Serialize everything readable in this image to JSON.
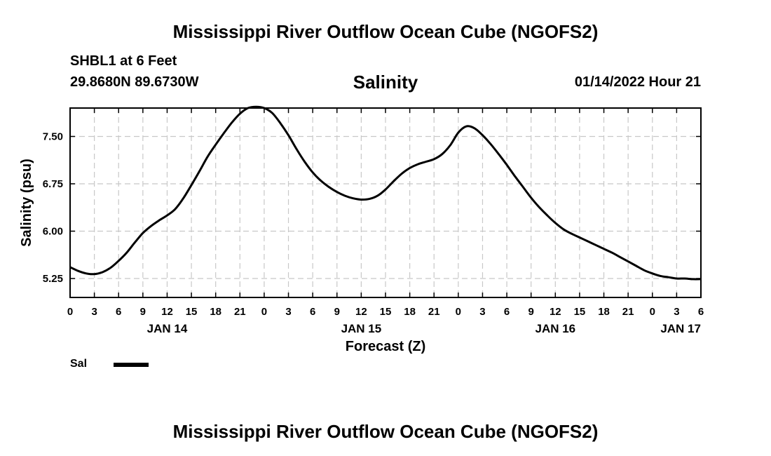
{
  "header": {
    "title_top": "Mississippi River Outflow Ocean Cube (NGOFS2)",
    "station": "SHBL1 at 6 Feet",
    "coords": "29.8680N  89.6730W",
    "variable": "Salinity",
    "timestamp": "01/14/2022 Hour 21",
    "title_bottom": "Mississippi River Outflow Ocean Cube (NGOFS2)"
  },
  "legend": {
    "label": "Sal",
    "color": "#000000"
  },
  "chart_data": {
    "type": "line",
    "title": "Salinity",
    "xlabel": "Forecast (Z)",
    "ylabel": "Salinity (psu)",
    "xlim": [
      0,
      78
    ],
    "ylim": [
      4.95,
      7.95
    ],
    "grid": true,
    "x_tick_values": [
      0,
      3,
      6,
      9,
      12,
      15,
      18,
      21,
      24,
      27,
      30,
      33,
      36,
      39,
      42,
      45,
      48,
      51,
      54,
      57,
      60,
      63,
      66,
      69,
      72,
      75,
      78
    ],
    "x_tick_labels": [
      "0",
      "3",
      "6",
      "9",
      "12",
      "15",
      "18",
      "21",
      "0",
      "3",
      "6",
      "9",
      "12",
      "15",
      "18",
      "21",
      "0",
      "3",
      "6",
      "9",
      "12",
      "15",
      "18",
      "21",
      "0",
      "3",
      "6"
    ],
    "date_labels": [
      {
        "x": 12,
        "label": "JAN 14"
      },
      {
        "x": 36,
        "label": "JAN 15"
      },
      {
        "x": 60,
        "label": "JAN 16"
      },
      {
        "x": 75.5,
        "label": "JAN 17"
      }
    ],
    "y_ticks": [
      5.25,
      6.0,
      6.75,
      7.5
    ],
    "y_tick_labels": [
      "5.25",
      "6.00",
      "6.75",
      "7.50"
    ],
    "series": [
      {
        "name": "Sal",
        "color": "#000000",
        "x": [
          0,
          1,
          2,
          3,
          4,
          5,
          6,
          7,
          8,
          9,
          10,
          11,
          12,
          13,
          14,
          15,
          16,
          17,
          18,
          19,
          20,
          21,
          22,
          23,
          24,
          25,
          26,
          27,
          28,
          29,
          30,
          31,
          32,
          33,
          34,
          35,
          36,
          37,
          38,
          39,
          40,
          41,
          42,
          43,
          44,
          45,
          46,
          47,
          48,
          49,
          50,
          51,
          52,
          53,
          54,
          55,
          56,
          57,
          58,
          59,
          60,
          61,
          62,
          63,
          64,
          65,
          66,
          67,
          68,
          69,
          70,
          71,
          72,
          73,
          74,
          75,
          76,
          77,
          78
        ],
        "values": [
          5.43,
          5.37,
          5.33,
          5.32,
          5.35,
          5.42,
          5.53,
          5.66,
          5.82,
          5.97,
          6.08,
          6.17,
          6.25,
          6.35,
          6.52,
          6.73,
          6.95,
          7.18,
          7.37,
          7.55,
          7.72,
          7.86,
          7.95,
          7.97,
          7.95,
          7.87,
          7.71,
          7.52,
          7.3,
          7.1,
          6.93,
          6.8,
          6.7,
          6.62,
          6.56,
          6.52,
          6.5,
          6.51,
          6.56,
          6.66,
          6.79,
          6.91,
          7.0,
          7.06,
          7.1,
          7.14,
          7.22,
          7.36,
          7.56,
          7.66,
          7.63,
          7.52,
          7.38,
          7.22,
          7.05,
          6.87,
          6.7,
          6.53,
          6.38,
          6.25,
          6.13,
          6.03,
          5.96,
          5.9,
          5.84,
          5.78,
          5.72,
          5.66,
          5.59,
          5.52,
          5.45,
          5.38,
          5.33,
          5.29,
          5.27,
          5.25,
          5.25,
          5.24,
          5.24
        ]
      }
    ]
  }
}
